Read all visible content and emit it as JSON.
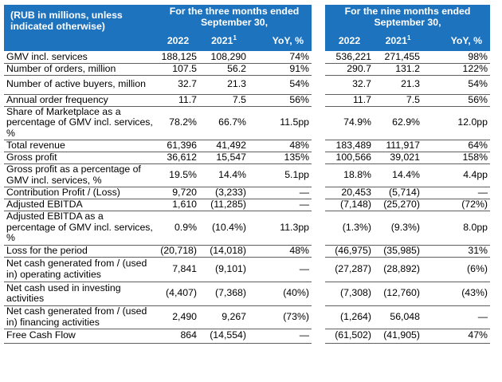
{
  "header": {
    "units": "(RUB in millions, unless indicated otherwise)",
    "three_months": "For the three months ended September 30,",
    "nine_months": "For the nine months ended September 30,",
    "col_2022": "2022",
    "col_2021": "2021",
    "col_2021_note": "1",
    "col_yoy": "YoY, %"
  },
  "rows": [
    {
      "label": "GMV incl. services",
      "q22": "188,125",
      "q21": "108,290",
      "qyoy": "74%",
      "n22": "536,221",
      "n21": "271,455",
      "nyoy": "98%"
    },
    {
      "label": "Number of orders, million",
      "q22": "107.5",
      "q21": "56.2",
      "qyoy": "91%",
      "n22": "290.7",
      "n21": "131.2",
      "nyoy": "122%"
    },
    {
      "label": "Number of active buyers, million",
      "q22": "32.7",
      "q21": "21.3",
      "qyoy": "54%",
      "n22": "32.7",
      "n21": "21.3",
      "nyoy": "54%"
    },
    {
      "label": "Annual order frequency",
      "q22": "11.7",
      "q21": "7.5",
      "qyoy": "56%",
      "n22": "11.7",
      "n21": "7.5",
      "nyoy": "56%"
    },
    {
      "label": "Share of Marketplace as a percentage of GMV incl. services, %",
      "q22": "78.2%",
      "q21": "66.7%",
      "qyoy": "11.5pp",
      "n22": "74.9%",
      "n21": "62.9%",
      "nyoy": "12.0pp"
    },
    {
      "label": "Total revenue",
      "q22": "61,396",
      "q21": "41,492",
      "qyoy": "48%",
      "n22": "183,489",
      "n21": "111,917",
      "nyoy": "64%"
    },
    {
      "label": "Gross profit",
      "q22": "36,612",
      "q21": "15,547",
      "qyoy": "135%",
      "n22": "100,566",
      "n21": "39,021",
      "nyoy": "158%"
    },
    {
      "label": "Gross profit as a percentage of GMV incl. services, %",
      "q22": "19.5%",
      "q21": "14.4%",
      "qyoy": "5.1pp",
      "n22": "18.8%",
      "n21": "14.4%",
      "nyoy": "4.4pp"
    },
    {
      "label": "Contribution Profit / (Loss)",
      "q22": "9,720",
      "q21": "(3,233)",
      "qyoy": "—",
      "n22": "20,453",
      "n21": "(5,714)",
      "nyoy": "—"
    },
    {
      "label": "Adjusted EBITDA",
      "q22": "1,610",
      "q21": "(11,285)",
      "qyoy": "—",
      "n22": "(7,148)",
      "n21": "(25,270)",
      "nyoy": "(72%)"
    },
    {
      "label": "Adjusted EBITDA as a percentage of GMV incl. services, %",
      "q22": "0.9%",
      "q21": "(10.4%)",
      "qyoy": "11.3pp",
      "n22": "(1.3%)",
      "n21": "(9.3%)",
      "nyoy": "8.0pp"
    },
    {
      "label": "Loss for the period",
      "q22": "(20,718)",
      "q21": "(14,018)",
      "qyoy": "48%",
      "n22": "(46,975)",
      "n21": "(35,985)",
      "nyoy": "31%"
    },
    {
      "label": "Net cash generated from / (used in) operating activities",
      "q22": "7,841",
      "q21": "(9,101)",
      "qyoy": "—",
      "n22": "(27,287)",
      "n21": "(28,892)",
      "nyoy": "(6%)"
    },
    {
      "label": "Net cash used in investing activities",
      "q22": "(4,407)",
      "q21": "(7,368)",
      "qyoy": "(40%)",
      "n22": "(7,308)",
      "n21": "(12,760)",
      "nyoy": "(43%)"
    },
    {
      "label": "Net cash generated from / (used in) financing activities",
      "q22": "2,490",
      "q21": "9,267",
      "qyoy": "(73%)",
      "n22": "(1,264)",
      "n21": "56,048",
      "nyoy": "—"
    },
    {
      "label": "Free Cash Flow",
      "q22": "864",
      "q21": "(14,554)",
      "qyoy": "—",
      "n22": "(61,502)",
      "n21": "(41,905)",
      "nyoy": "47%"
    }
  ]
}
